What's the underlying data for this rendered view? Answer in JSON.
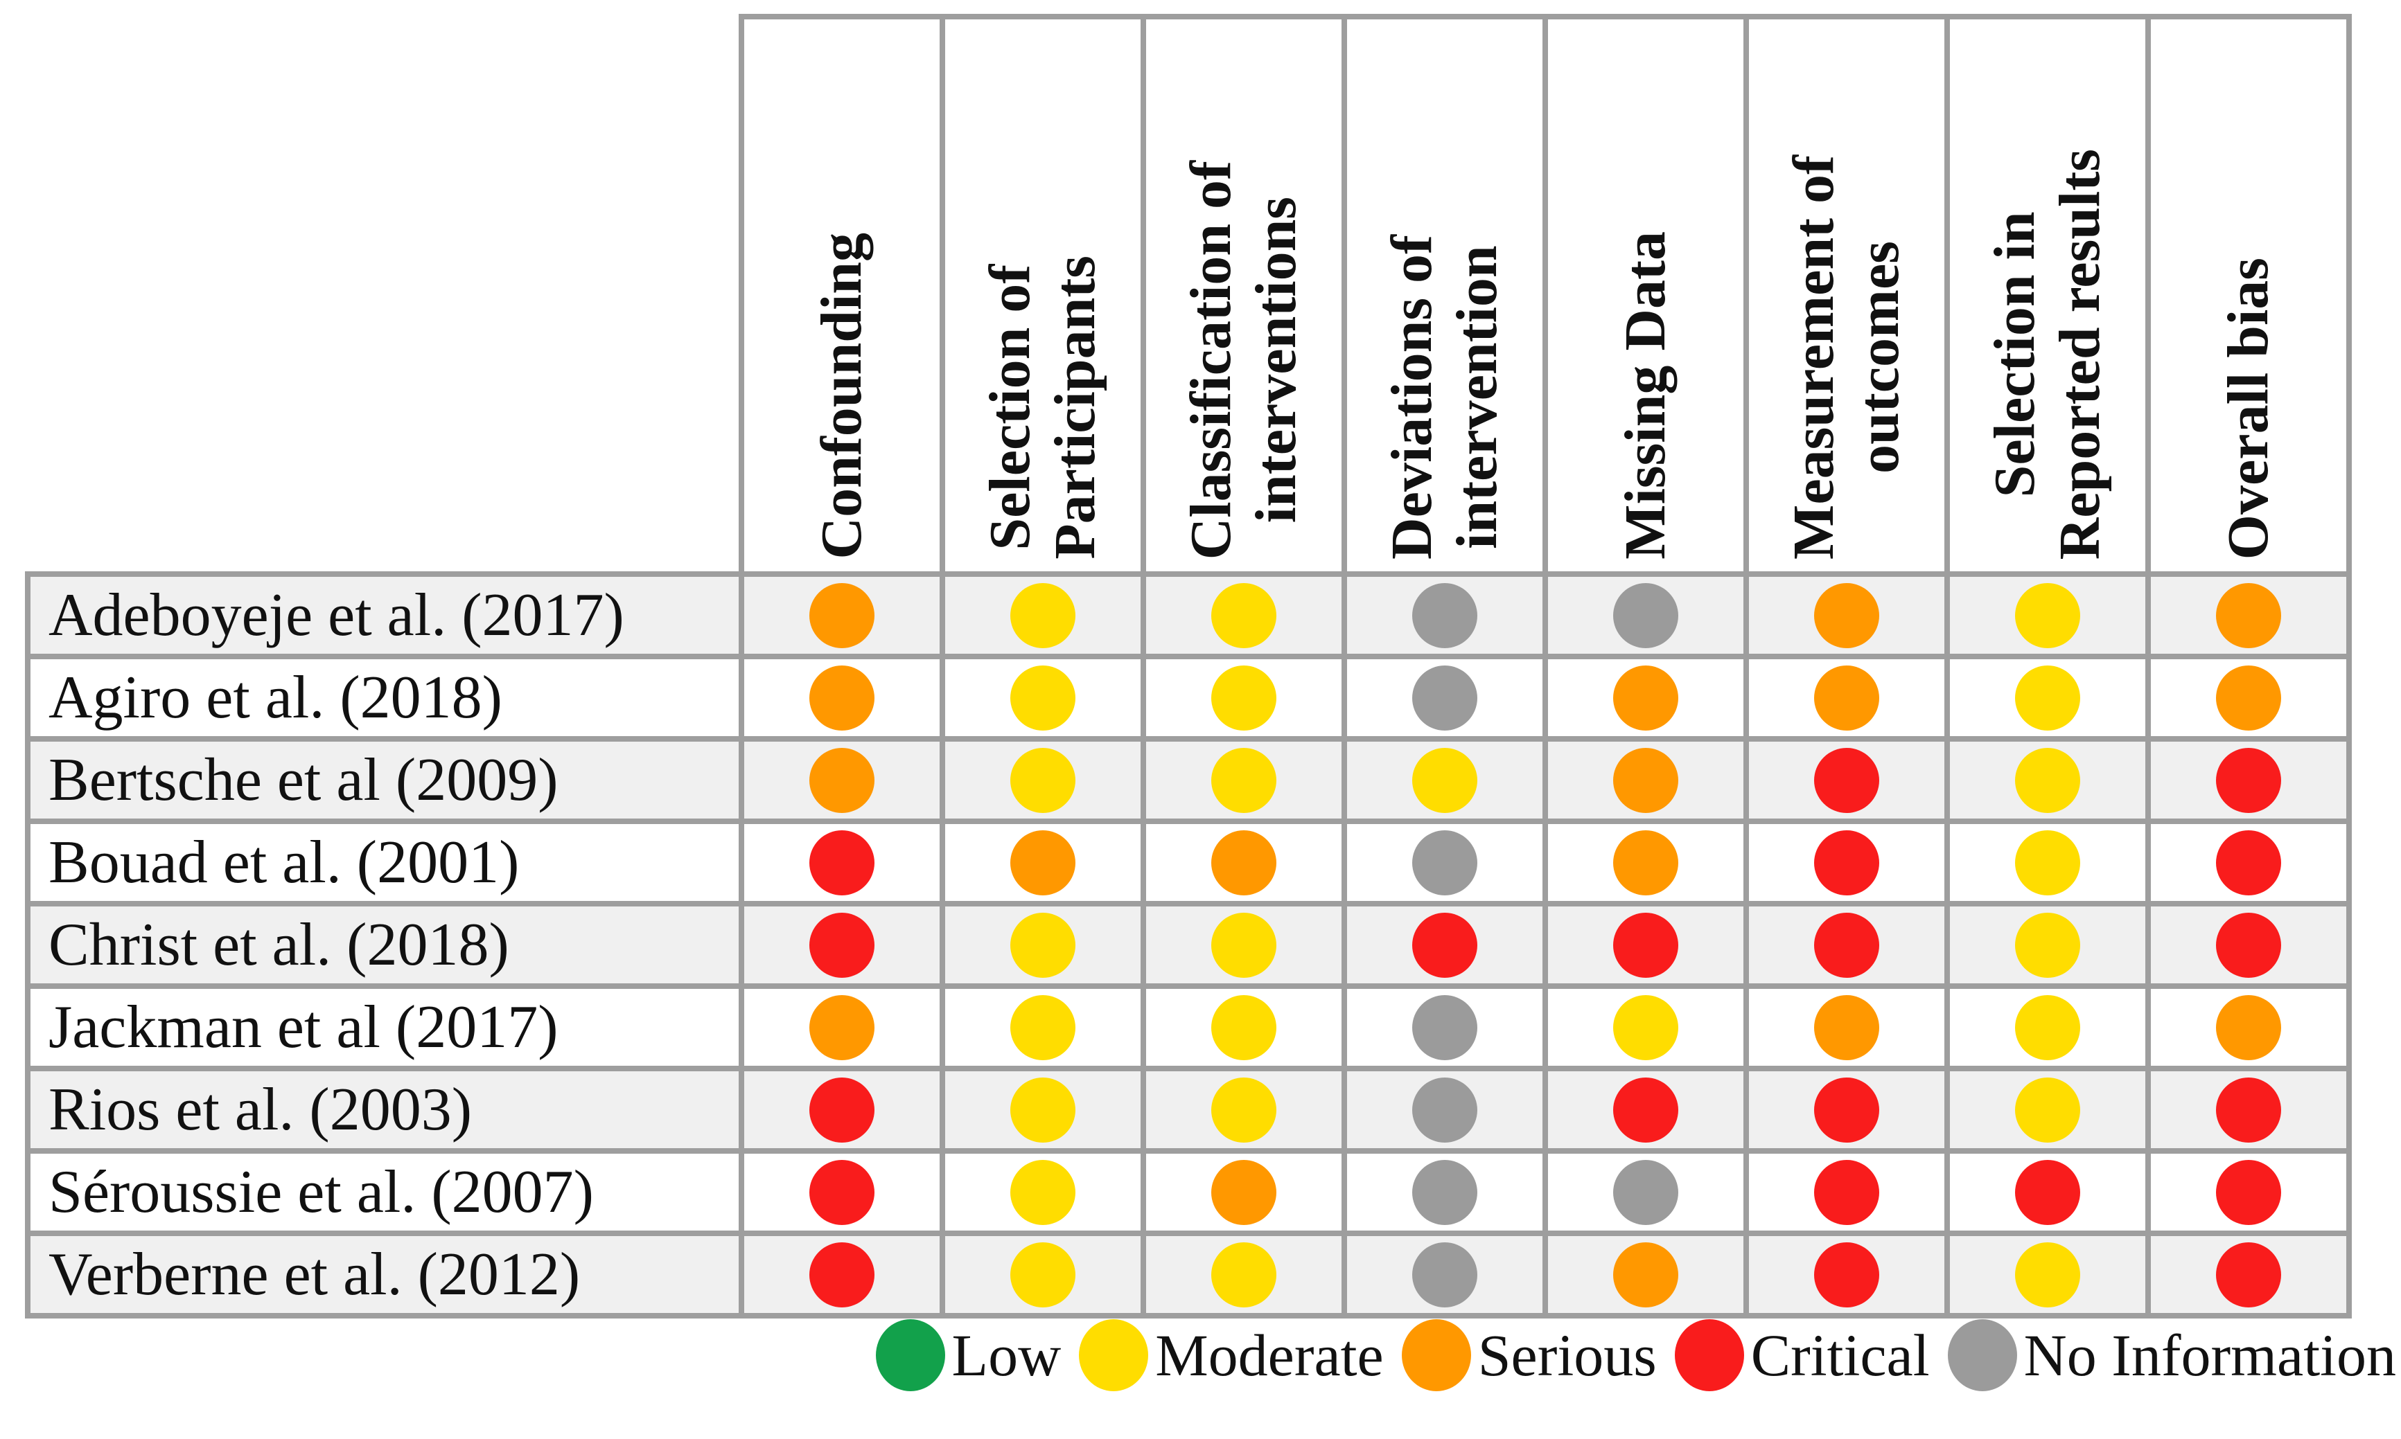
{
  "chart_data": {
    "type": "heatmap",
    "title": "",
    "columns": [
      "Confounding",
      "Selection of\nParticipants",
      "Classification of\ninterventions",
      "Deviations of\nintervention",
      "Missing Data",
      "Measurement of\noutcomes",
      "Selection in\nReported results",
      "Overall bias"
    ],
    "rows": [
      {
        "study": "Adeboyeje et al. (2017)",
        "ratings": [
          "serious",
          "moderate",
          "moderate",
          "no_information",
          "no_information",
          "serious",
          "moderate",
          "serious"
        ]
      },
      {
        "study": "Agiro et al. (2018)",
        "ratings": [
          "serious",
          "moderate",
          "moderate",
          "no_information",
          "serious",
          "serious",
          "moderate",
          "serious"
        ]
      },
      {
        "study": "Bertsche et al (2009)",
        "ratings": [
          "serious",
          "moderate",
          "moderate",
          "moderate",
          "serious",
          "critical",
          "moderate",
          "critical"
        ]
      },
      {
        "study": "Bouad et al. (2001)",
        "ratings": [
          "critical",
          "serious",
          "serious",
          "no_information",
          "serious",
          "critical",
          "moderate",
          "critical"
        ]
      },
      {
        "study": "Christ et al. (2018)",
        "ratings": [
          "critical",
          "moderate",
          "moderate",
          "critical",
          "critical",
          "critical",
          "moderate",
          "critical"
        ]
      },
      {
        "study": "Jackman et al (2017)",
        "ratings": [
          "serious",
          "moderate",
          "moderate",
          "no_information",
          "moderate",
          "serious",
          "moderate",
          "serious"
        ]
      },
      {
        "study": "Rios et al. (2003)",
        "ratings": [
          "critical",
          "moderate",
          "moderate",
          "no_information",
          "critical",
          "critical",
          "moderate",
          "critical"
        ]
      },
      {
        "study": "Séroussie et al. (2007)",
        "ratings": [
          "critical",
          "moderate",
          "serious",
          "no_information",
          "no_information",
          "critical",
          "critical",
          "critical"
        ]
      },
      {
        "study": "Verberne et al. (2012)",
        "ratings": [
          "critical",
          "moderate",
          "moderate",
          "no_information",
          "serious",
          "critical",
          "moderate",
          "critical"
        ]
      }
    ],
    "legend": [
      {
        "key": "low",
        "label": "Low",
        "color": "#12A14B"
      },
      {
        "key": "moderate",
        "label": "Moderate",
        "color": "#FFDD00"
      },
      {
        "key": "serious",
        "label": "Serious",
        "color": "#FF9800"
      },
      {
        "key": "critical",
        "label": "Critical",
        "color": "#F91C1C"
      },
      {
        "key": "no_information",
        "label": "No Information",
        "color": "#9B9B9B"
      }
    ],
    "legend_position": "bottom",
    "grid_color": "#9E9E9E",
    "row_stripe_color": "#F0F0F0"
  }
}
